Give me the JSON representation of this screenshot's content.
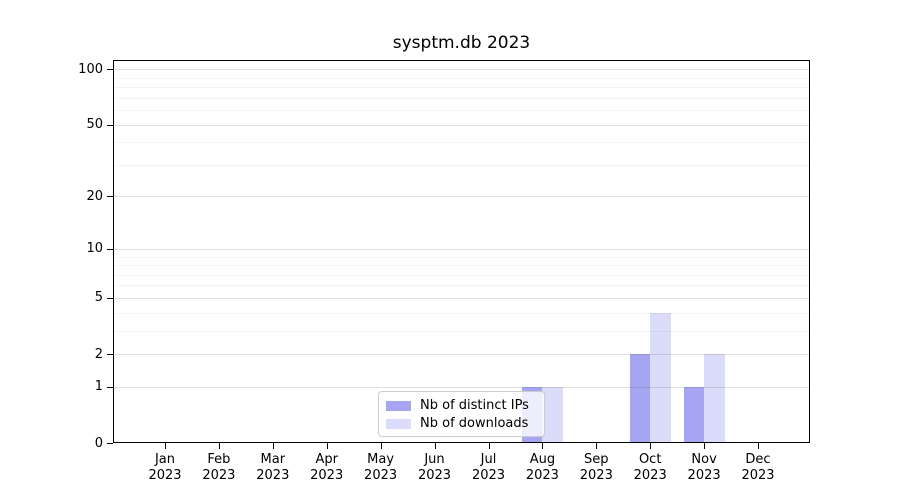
{
  "chart_data": {
    "type": "bar",
    "title": "sysptm.db 2023",
    "categories": [
      "Jan 2023",
      "Feb 2023",
      "Mar 2023",
      "Apr 2023",
      "May 2023",
      "Jun 2023",
      "Jul 2023",
      "Aug 2023",
      "Sep 2023",
      "Oct 2023",
      "Nov 2023",
      "Dec 2023"
    ],
    "series": [
      {
        "name": "Nb of distinct IPs",
        "color": "#a5a5f2",
        "values": [
          0,
          0,
          0,
          0,
          0,
          0,
          0,
          1,
          0,
          2,
          1,
          0
        ]
      },
      {
        "name": "Nb of downloads",
        "color": "#dbdbfa",
        "values": [
          0,
          0,
          0,
          0,
          0,
          0,
          0,
          1,
          0,
          4,
          2,
          0
        ]
      }
    ],
    "xlabel": "",
    "ylabel": "",
    "yscale": "log1p",
    "y_ticks": [
      0,
      1,
      2,
      5,
      10,
      20,
      50,
      100
    ],
    "y_minor_ticks": [
      3,
      4,
      6,
      7,
      8,
      9,
      30,
      40,
      60,
      70,
      80,
      90
    ],
    "ylim": [
      0,
      112
    ],
    "grid": true,
    "legend_position": "lower center"
  }
}
